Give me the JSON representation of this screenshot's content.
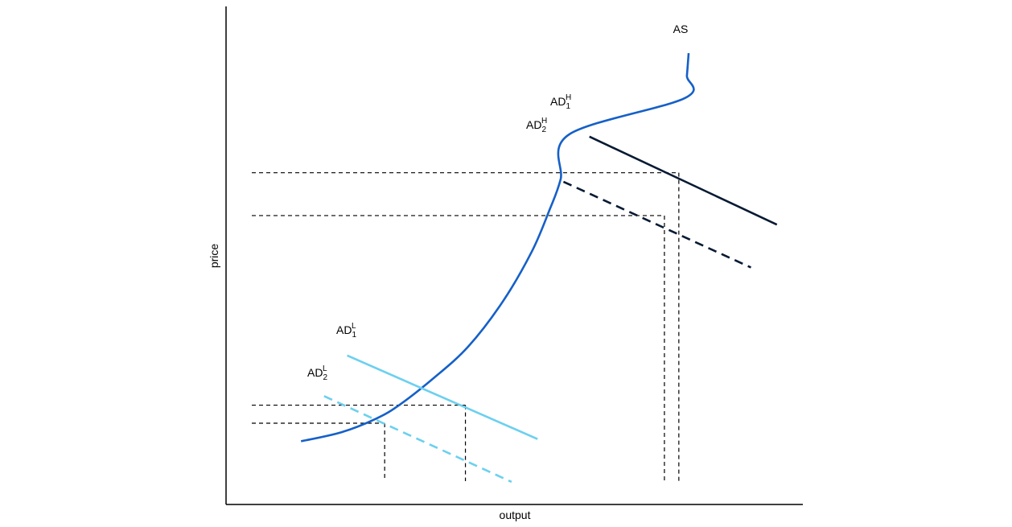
{
  "chart_data": {
    "type": "line",
    "title": "",
    "xlabel": "output",
    "ylabel": "price",
    "xlim": [
      0,
      100
    ],
    "ylim": [
      0,
      100
    ],
    "grid": false,
    "curves": [
      {
        "key": "as",
        "label": "AS",
        "color": "#1560c8",
        "dashed": false,
        "points": [
          [
            13,
            14
          ],
          [
            20,
            16
          ],
          [
            26,
            19
          ],
          [
            30,
            22
          ],
          [
            36,
            28
          ],
          [
            42,
            35
          ],
          [
            48,
            45
          ],
          [
            53,
            56
          ],
          [
            56,
            65
          ],
          [
            58,
            72
          ],
          [
            59.5,
            82
          ],
          [
            79.5,
            90
          ],
          [
            79.9,
            95
          ],
          [
            80.2,
            100
          ]
        ]
      },
      {
        "key": "ad1h",
        "label": "AD",
        "sub": "1",
        "sup": "H",
        "color": "#071a33",
        "dashed": false,
        "points": [
          [
            63,
            81.5
          ],
          [
            95.5,
            62
          ]
        ]
      },
      {
        "key": "ad2h",
        "label": "AD",
        "sub": "2",
        "sup": "H",
        "color": "#071a33",
        "dashed": true,
        "points": [
          [
            58.5,
            71.5
          ],
          [
            91,
            52.5
          ]
        ]
      },
      {
        "key": "ad1l",
        "label": "AD",
        "sub": "1",
        "sup": "L",
        "color": "#6cd0ef",
        "dashed": false,
        "points": [
          [
            21,
            33
          ],
          [
            54,
            14.5
          ]
        ]
      },
      {
        "key": "ad2l",
        "label": "AD",
        "sub": "2",
        "sup": "L",
        "color": "#6cd0ef",
        "dashed": true,
        "points": [
          [
            17,
            24
          ],
          [
            49.5,
            5
          ]
        ]
      }
    ],
    "equilibria": [
      {
        "name": "H1",
        "x": 78.5,
        "y": 73.5
      },
      {
        "name": "H2",
        "x": 76,
        "y": 64
      },
      {
        "name": "L1",
        "x": 41.5,
        "y": 22
      },
      {
        "name": "L2",
        "x": 27.5,
        "y": 18
      }
    ]
  }
}
